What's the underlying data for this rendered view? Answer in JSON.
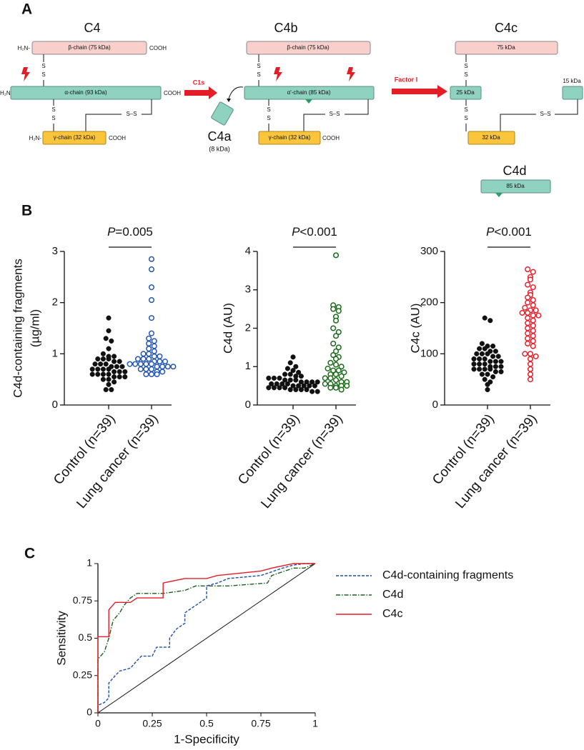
{
  "panel_labels": [
    "A",
    "B",
    "C"
  ],
  "diagram": {
    "n_terminus": "H₂N-",
    "c_terminus": "COOH",
    "sulfur": "S",
    "disulfide": "S–S",
    "enzymes": [
      "C1s",
      "Factor I"
    ],
    "c4": {
      "title": "C4",
      "beta": "β-chain (75 kDa)",
      "alpha": "α-chain (93 kDa)",
      "gamma": "γ-chain (32 kDa)"
    },
    "c4a": {
      "title": "C4a",
      "mass": "(8 kDa)"
    },
    "c4b": {
      "title": "C4b",
      "beta": "β-chain (75 kDa)",
      "alpha": "α'-chain (85 kDa)",
      "gamma": "γ-chain (32 kDa)"
    },
    "c4c": {
      "title": "C4c",
      "beta": "75 kDa",
      "alpha1": "25 kDa",
      "alpha2": "15 kDa",
      "gamma": "32 kDa"
    },
    "c4d": {
      "title": "C4d",
      "mass": "85 kDa"
    }
  },
  "chart_data": [
    {
      "type": "dotplot",
      "ylabel": [
        "C4d-containing fragments",
        "(µg/ml)"
      ],
      "categories": [
        "Control (n=39)",
        "Lung cancer (n=39)"
      ],
      "colors": [
        "#111111",
        "#2457b3"
      ],
      "markers": [
        "filled",
        "open"
      ],
      "values": [
        [
          1.7,
          1.45,
          1.3,
          1.25,
          1.1,
          1.0,
          0.95,
          0.95,
          0.9,
          0.9,
          0.9,
          0.85,
          0.85,
          0.8,
          0.8,
          0.8,
          0.75,
          0.75,
          0.75,
          0.7,
          0.7,
          0.7,
          0.7,
          0.65,
          0.65,
          0.65,
          0.6,
          0.6,
          0.6,
          0.6,
          0.55,
          0.55,
          0.55,
          0.5,
          0.5,
          0.45,
          0.4,
          0.3,
          0.3
        ],
        [
          2.85,
          2.65,
          2.3,
          2.05,
          1.7,
          1.4,
          1.3,
          1.25,
          1.2,
          1.15,
          1.1,
          1.05,
          1.0,
          1.0,
          0.95,
          0.95,
          0.9,
          0.9,
          0.9,
          0.85,
          0.85,
          0.85,
          0.8,
          0.8,
          0.8,
          0.8,
          0.8,
          0.75,
          0.75,
          0.75,
          0.75,
          0.7,
          0.7,
          0.7,
          0.65,
          0.65,
          0.6,
          0.6,
          0.6
        ]
      ],
      "annotation_prefix": "P",
      "annotation": "=0.005",
      "ylim": [
        0,
        3
      ],
      "yticks": [
        0,
        1,
        2,
        3
      ]
    },
    {
      "type": "dotplot",
      "ylabel": [
        "C4d (AU)"
      ],
      "categories": [
        "Control (n=39)",
        "Lung cancer (n=39)"
      ],
      "colors": [
        "#111111",
        "#1b6b1b"
      ],
      "markers": [
        "filled",
        "open"
      ],
      "values": [
        [
          1.25,
          1.1,
          1.0,
          0.95,
          0.9,
          0.85,
          0.8,
          0.8,
          0.75,
          0.75,
          0.7,
          0.7,
          0.7,
          0.65,
          0.65,
          0.65,
          0.6,
          0.6,
          0.6,
          0.6,
          0.55,
          0.55,
          0.55,
          0.55,
          0.5,
          0.5,
          0.5,
          0.5,
          0.5,
          0.45,
          0.45,
          0.45,
          0.45,
          0.4,
          0.4,
          0.4,
          0.4,
          0.35,
          0.35
        ],
        [
          3.9,
          2.6,
          2.55,
          2.5,
          2.45,
          2.3,
          2.2,
          2.0,
          1.9,
          1.8,
          1.6,
          1.5,
          1.4,
          1.3,
          1.25,
          1.2,
          1.1,
          1.05,
          1.0,
          0.95,
          0.9,
          0.9,
          0.85,
          0.8,
          0.8,
          0.75,
          0.7,
          0.7,
          0.65,
          0.6,
          0.6,
          0.55,
          0.55,
          0.5,
          0.5,
          0.5,
          0.45,
          0.45,
          0.4
        ]
      ],
      "annotation_prefix": "P",
      "annotation": "<0.001",
      "ylim": [
        0,
        4
      ],
      "yticks": [
        0,
        1,
        2,
        3,
        4
      ]
    },
    {
      "type": "dotplot",
      "ylabel": [
        "C4c (AU)"
      ],
      "categories": [
        "Control (n=39)",
        "Lung cancer (n=39)"
      ],
      "colors": [
        "#111111",
        "#e8202a"
      ],
      "markers": [
        "filled",
        "open"
      ],
      "values": [
        [
          170,
          165,
          120,
          115,
          115,
          110,
          110,
          105,
          105,
          100,
          100,
          100,
          95,
          95,
          90,
          90,
          90,
          85,
          85,
          85,
          80,
          80,
          80,
          75,
          75,
          75,
          70,
          70,
          70,
          70,
          65,
          65,
          60,
          60,
          55,
          50,
          45,
          40,
          30
        ],
        [
          265,
          260,
          250,
          245,
          235,
          230,
          220,
          215,
          210,
          205,
          200,
          195,
          190,
          185,
          185,
          180,
          180,
          175,
          175,
          170,
          165,
          160,
          155,
          150,
          145,
          140,
          135,
          130,
          125,
          120,
          115,
          100,
          100,
          95,
          90,
          80,
          70,
          60,
          50
        ]
      ],
      "annotation_prefix": "P",
      "annotation": "<0.001",
      "ylim": [
        0,
        300
      ],
      "yticks": [
        0,
        100,
        200,
        300
      ]
    },
    {
      "type": "line",
      "xlabel": "1-Specificity",
      "ylabel": "Sensitivity",
      "legend": "outside-right",
      "xlim": [
        0,
        1
      ],
      "xticks": [
        0,
        0.25,
        0.5,
        0.75,
        1
      ],
      "ylim": [
        0,
        1
      ],
      "yticks": [
        0,
        0.25,
        0.5,
        0.75,
        1
      ],
      "series": [
        {
          "name": "C4d-containing fragments",
          "color": "#1f4fa8",
          "dash": "dashed",
          "x": [
            0,
            0,
            0.03,
            0.05,
            0.05,
            0.08,
            0.1,
            0.15,
            0.18,
            0.2,
            0.25,
            0.27,
            0.33,
            0.33,
            0.36,
            0.4,
            0.4,
            0.45,
            0.5,
            0.5,
            0.55,
            0.6,
            0.75,
            0.85,
            0.9,
            0.95,
            1
          ],
          "values": [
            0,
            0.05,
            0.07,
            0.1,
            0.2,
            0.25,
            0.28,
            0.3,
            0.35,
            0.38,
            0.38,
            0.44,
            0.44,
            0.5,
            0.56,
            0.6,
            0.67,
            0.72,
            0.77,
            0.85,
            0.87,
            0.9,
            0.92,
            0.97,
            0.99,
            1,
            1
          ]
        },
        {
          "name": "C4d",
          "color": "#1a5e20",
          "dash": "dashdot",
          "x": [
            0,
            0,
            0.03,
            0.05,
            0.07,
            0.1,
            0.12,
            0.15,
            0.18,
            0.3,
            0.4,
            0.45,
            0.6,
            0.78,
            0.8,
            0.9,
            0.95,
            1
          ],
          "values": [
            0,
            0.36,
            0.41,
            0.5,
            0.62,
            0.67,
            0.72,
            0.77,
            0.8,
            0.8,
            0.82,
            0.85,
            0.85,
            0.87,
            0.92,
            0.97,
            0.97,
            1
          ]
        },
        {
          "name": "C4c",
          "color": "#e41e26",
          "dash": "solid",
          "x": [
            0,
            0,
            0.05,
            0.05,
            0.08,
            0.15,
            0.18,
            0.3,
            0.3,
            0.4,
            0.5,
            0.55,
            0.75,
            0.8,
            0.9,
            1
          ],
          "values": [
            0,
            0.51,
            0.51,
            0.69,
            0.74,
            0.74,
            0.77,
            0.77,
            0.87,
            0.9,
            0.9,
            0.92,
            0.95,
            0.97,
            1,
            1
          ]
        }
      ]
    }
  ]
}
